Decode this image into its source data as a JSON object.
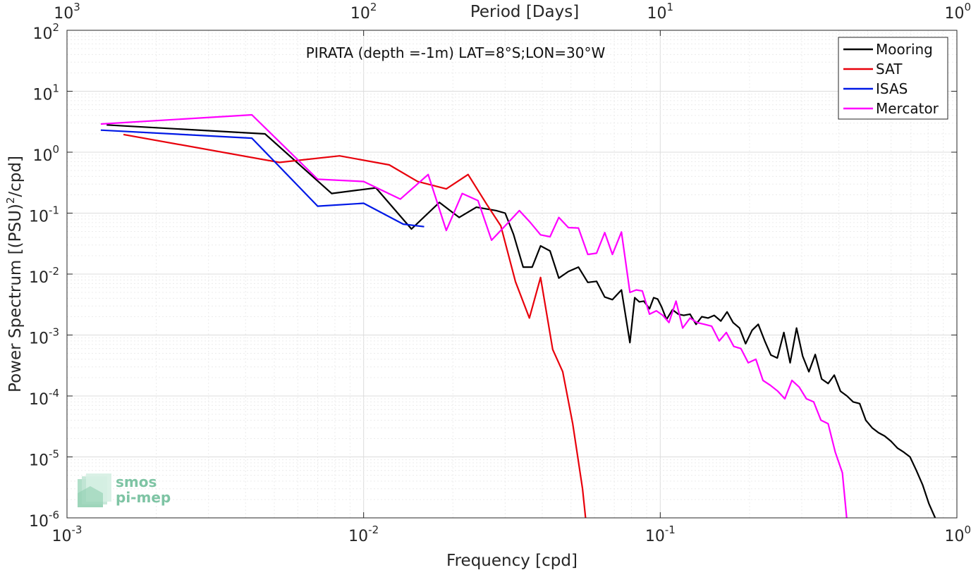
{
  "chart_data": {
    "type": "line",
    "title": "PIRATA (depth =-1m) LAT=8°S;LON=30°W",
    "xlabel": "Frequency [cpd]",
    "ylabel_prefix": "Power Spectrum [(PSU)",
    "ylabel_sup": "2",
    "ylabel_suffix": "/cpd]",
    "top_xlabel": "Period [Days]",
    "xscale": "log",
    "yscale": "log",
    "xlim": [
      0.001,
      1
    ],
    "ylim": [
      1e-06,
      100
    ],
    "grid": true,
    "legend_position": "top-right",
    "x_ticks": [
      {
        "base": "10",
        "exp": "-3"
      },
      {
        "base": "10",
        "exp": "-2"
      },
      {
        "base": "10",
        "exp": "-1"
      },
      {
        "base": "10",
        "exp": "0"
      }
    ],
    "top_ticks": [
      {
        "base": "10",
        "exp": "3"
      },
      {
        "base": "10",
        "exp": "2"
      },
      {
        "base": "10",
        "exp": "1"
      },
      {
        "base": "10",
        "exp": "0"
      }
    ],
    "y_ticks": [
      {
        "base": "10",
        "exp": "-6"
      },
      {
        "base": "10",
        "exp": "-5"
      },
      {
        "base": "10",
        "exp": "-4"
      },
      {
        "base": "10",
        "exp": "-3"
      },
      {
        "base": "10",
        "exp": "-2"
      },
      {
        "base": "10",
        "exp": "-1"
      },
      {
        "base": "10",
        "exp": "0"
      },
      {
        "base": "10",
        "exp": "1"
      },
      {
        "base": "10",
        "exp": "2"
      }
    ],
    "series": [
      {
        "name": "Mooring",
        "color": "#000000",
        "points": [
          [
            0.00136,
            2.8
          ],
          [
            0.00465,
            2.0
          ],
          [
            0.0078,
            0.21
          ],
          [
            0.011,
            0.26
          ],
          [
            0.0145,
            0.055
          ],
          [
            0.018,
            0.15
          ],
          [
            0.021,
            0.085
          ],
          [
            0.024,
            0.125
          ],
          [
            0.028,
            0.11
          ],
          [
            0.03,
            0.1
          ],
          [
            0.032,
            0.045
          ],
          [
            0.0345,
            0.013
          ],
          [
            0.037,
            0.013
          ],
          [
            0.0395,
            0.029
          ],
          [
            0.0425,
            0.024
          ],
          [
            0.0455,
            0.0086
          ],
          [
            0.049,
            0.011
          ],
          [
            0.053,
            0.013
          ],
          [
            0.057,
            0.0073
          ],
          [
            0.061,
            0.0076
          ],
          [
            0.065,
            0.0042
          ],
          [
            0.069,
            0.0038
          ],
          [
            0.074,
            0.0055
          ],
          [
            0.079,
            0.00075
          ],
          [
            0.082,
            0.0041
          ],
          [
            0.085,
            0.0035
          ],
          [
            0.088,
            0.0036
          ],
          [
            0.092,
            0.0027
          ],
          [
            0.095,
            0.0041
          ],
          [
            0.098,
            0.0039
          ],
          [
            0.101,
            0.0029
          ],
          [
            0.105,
            0.0018
          ],
          [
            0.11,
            0.0026
          ],
          [
            0.115,
            0.0022
          ],
          [
            0.12,
            0.0021
          ],
          [
            0.126,
            0.0022
          ],
          [
            0.132,
            0.0015
          ],
          [
            0.138,
            0.002
          ],
          [
            0.145,
            0.0019
          ],
          [
            0.152,
            0.0021
          ],
          [
            0.16,
            0.0017
          ],
          [
            0.168,
            0.0024
          ],
          [
            0.176,
            0.0016
          ],
          [
            0.185,
            0.0013
          ],
          [
            0.194,
            0.00072
          ],
          [
            0.204,
            0.0012
          ],
          [
            0.214,
            0.0015
          ],
          [
            0.225,
            0.0008
          ],
          [
            0.236,
            0.00047
          ],
          [
            0.248,
            0.00042
          ],
          [
            0.261,
            0.0011
          ],
          [
            0.274,
            0.00035
          ],
          [
            0.288,
            0.0013
          ],
          [
            0.302,
            0.00045
          ],
          [
            0.317,
            0.00025
          ],
          [
            0.333,
            0.00048
          ],
          [
            0.35,
            0.00019
          ],
          [
            0.368,
            0.00016
          ],
          [
            0.386,
            0.00022
          ],
          [
            0.405,
            0.00012
          ],
          [
            0.426,
            0.0001
          ],
          [
            0.447,
            8e-05
          ],
          [
            0.47,
            7.5e-05
          ],
          [
            0.493,
            4e-05
          ],
          [
            0.518,
            3e-05
          ],
          [
            0.544,
            2.5e-05
          ],
          [
            0.571,
            2.2e-05
          ],
          [
            0.6,
            1.8e-05
          ],
          [
            0.63,
            1.4e-05
          ],
          [
            0.662,
            1.2e-05
          ],
          [
            0.695,
            1e-05
          ],
          [
            0.73,
            6e-06
          ],
          [
            0.766,
            3.5e-06
          ],
          [
            0.805,
            1.7e-06
          ],
          [
            0.845,
            1e-06
          ]
        ]
      },
      {
        "name": "SAT",
        "color": "#e8000b",
        "points": [
          [
            0.00155,
            1.95
          ],
          [
            0.0052,
            0.68
          ],
          [
            0.0083,
            0.87
          ],
          [
            0.0122,
            0.62
          ],
          [
            0.0152,
            0.33
          ],
          [
            0.019,
            0.25
          ],
          [
            0.0225,
            0.43
          ],
          [
            0.026,
            0.14
          ],
          [
            0.029,
            0.062
          ],
          [
            0.0325,
            0.0075
          ],
          [
            0.0362,
            0.0019
          ],
          [
            0.0395,
            0.0088
          ],
          [
            0.0434,
            0.00058
          ],
          [
            0.0469,
            0.00025
          ],
          [
            0.0507,
            3.5e-05
          ],
          [
            0.0547,
            3e-06
          ],
          [
            0.056,
            1e-06
          ]
        ]
      },
      {
        "name": "ISAS",
        "color": "#0019e6",
        "points": [
          [
            0.0013,
            2.3
          ],
          [
            0.0042,
            1.7
          ],
          [
            0.007,
            0.13
          ],
          [
            0.01,
            0.145
          ],
          [
            0.0136,
            0.066
          ],
          [
            0.016,
            0.06
          ]
        ]
      },
      {
        "name": "Mercator",
        "color": "#ff00ff",
        "points": [
          [
            0.0013,
            2.9
          ],
          [
            0.0042,
            4.1
          ],
          [
            0.007,
            0.36
          ],
          [
            0.01,
            0.33
          ],
          [
            0.0133,
            0.17
          ],
          [
            0.0165,
            0.43
          ],
          [
            0.019,
            0.052
          ],
          [
            0.0215,
            0.21
          ],
          [
            0.0243,
            0.16
          ],
          [
            0.027,
            0.036
          ],
          [
            0.03,
            0.062
          ],
          [
            0.0335,
            0.11
          ],
          [
            0.0365,
            0.07
          ],
          [
            0.0395,
            0.044
          ],
          [
            0.0425,
            0.041
          ],
          [
            0.0455,
            0.085
          ],
          [
            0.049,
            0.058
          ],
          [
            0.053,
            0.057
          ],
          [
            0.057,
            0.021
          ],
          [
            0.061,
            0.022
          ],
          [
            0.065,
            0.048
          ],
          [
            0.069,
            0.021
          ],
          [
            0.074,
            0.049
          ],
          [
            0.079,
            0.005
          ],
          [
            0.083,
            0.0055
          ],
          [
            0.087,
            0.0053
          ],
          [
            0.092,
            0.0022
          ],
          [
            0.097,
            0.0025
          ],
          [
            0.102,
            0.0021
          ],
          [
            0.107,
            0.0016
          ],
          [
            0.113,
            0.0036
          ],
          [
            0.119,
            0.0013
          ],
          [
            0.126,
            0.0019
          ],
          [
            0.133,
            0.0016
          ],
          [
            0.141,
            0.0015
          ],
          [
            0.149,
            0.0014
          ],
          [
            0.158,
            0.0008
          ],
          [
            0.167,
            0.0011
          ],
          [
            0.177,
            0.00065
          ],
          [
            0.187,
            0.0006
          ],
          [
            0.198,
            0.00035
          ],
          [
            0.21,
            0.0004
          ],
          [
            0.222,
            0.00018
          ],
          [
            0.235,
            0.00015
          ],
          [
            0.249,
            0.00012
          ],
          [
            0.263,
            9e-05
          ],
          [
            0.278,
            0.00018
          ],
          [
            0.294,
            0.00014
          ],
          [
            0.311,
            9e-05
          ],
          [
            0.329,
            8e-05
          ],
          [
            0.348,
            4e-05
          ],
          [
            0.368,
            3.5e-05
          ],
          [
            0.389,
            1.2e-05
          ],
          [
            0.411,
            5.5e-06
          ],
          [
            0.425,
            1e-06
          ]
        ]
      }
    ]
  },
  "logo": {
    "line1": "smos",
    "line2": "pi-mep"
  }
}
